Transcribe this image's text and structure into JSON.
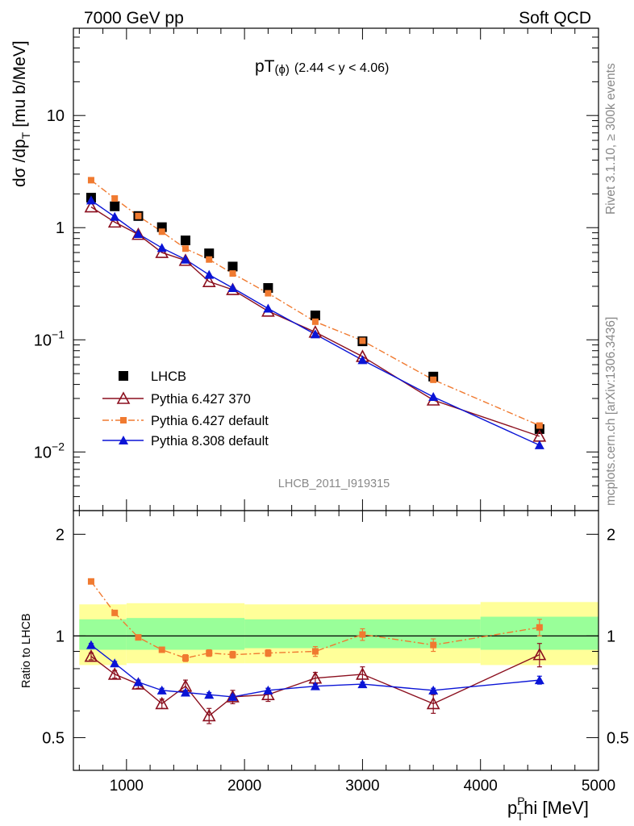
{
  "header": {
    "left": "7000 GeV pp",
    "right": "Soft QCD"
  },
  "side": {
    "rivet": "Rivet 3.1.10, ≥ 300k events",
    "mcplots": "mcplots.cern.ch [arXiv:1306.3436]"
  },
  "plot": {
    "title_main": "pT",
    "title_sub": "(ϕ)",
    "title_range": "(2.44 < y < 4.06)",
    "ylabel": "dσ /dp",
    "ylabel_sub": "T",
    "ylabel_unit": "[mu b/MeV]",
    "ratio_ylabel": "Ratio to LHCB",
    "xlabel_main": "p",
    "xlabel_sub": "T",
    "xlabel_sup": "P",
    "xlabel_tail": "hi [MeV]",
    "analysis_id": "LHCB_2011_I919315"
  },
  "colors": {
    "lhcb": "#000000",
    "py6_370": "#8b0f1e",
    "py6_default": "#f07a30",
    "py8": "#0a14d6",
    "band_outer": "#ffff99",
    "band_inner": "#99ff99"
  },
  "chart_data": {
    "type": "scatter",
    "x": [
      700,
      900,
      1100,
      1300,
      1500,
      1700,
      1900,
      2200,
      2600,
      3000,
      3600,
      4500
    ],
    "xlim": [
      550,
      5000
    ],
    "x_ticks": [
      1000,
      2000,
      3000,
      4000,
      5000
    ],
    "main": {
      "yscale": "log",
      "ylim": [
        0.003,
        60
      ],
      "y_ticks": [
        {
          "value": 0.01,
          "base": "10",
          "exp": "−2"
        },
        {
          "value": 0.1,
          "base": "10",
          "exp": "−1"
        },
        {
          "value": 1,
          "base": "1",
          "exp": ""
        },
        {
          "value": 10,
          "base": "10",
          "exp": ""
        }
      ]
    },
    "ratio": {
      "yscale": "log",
      "ylim": [
        0.4,
        2.35
      ],
      "y_ticks": [
        {
          "value": 0.5,
          "label": "0.5"
        },
        {
          "value": 1,
          "label": "1"
        },
        {
          "value": 2,
          "label": "2"
        }
      ],
      "band_inner": [
        {
          "x0": 600,
          "x1": 1000,
          "lo": 0.91,
          "hi": 1.12
        },
        {
          "x0": 1000,
          "x1": 2000,
          "lo": 0.91,
          "hi": 1.13
        },
        {
          "x0": 2000,
          "x1": 4000,
          "lo": 0.92,
          "hi": 1.12
        },
        {
          "x0": 4000,
          "x1": 5000,
          "lo": 0.91,
          "hi": 1.14
        }
      ],
      "band_outer": [
        {
          "x0": 600,
          "x1": 1000,
          "lo": 0.82,
          "hi": 1.24
        },
        {
          "x0": 1000,
          "x1": 2000,
          "lo": 0.83,
          "hi": 1.25
        },
        {
          "x0": 2000,
          "x1": 4000,
          "lo": 0.83,
          "hi": 1.24
        },
        {
          "x0": 4000,
          "x1": 5000,
          "lo": 0.82,
          "hi": 1.26
        }
      ]
    },
    "series": [
      {
        "name": "LHCB",
        "key": "lhcb",
        "marker": "square-filled",
        "line": "none",
        "values": [
          1.85,
          1.55,
          1.27,
          1.01,
          0.77,
          0.59,
          0.45,
          0.29,
          0.165,
          0.097,
          0.047,
          0.016
        ]
      },
      {
        "name": "Pythia 6.427 370",
        "key": "py6_370",
        "marker": "triangle-open",
        "line": "solid",
        "values": [
          1.53,
          1.12,
          0.87,
          0.6,
          0.51,
          0.33,
          0.28,
          0.18,
          0.117,
          0.071,
          0.029,
          0.0138
        ],
        "ratio": [
          0.87,
          0.77,
          0.72,
          0.63,
          0.71,
          0.58,
          0.66,
          0.67,
          0.75,
          0.77,
          0.63,
          0.88
        ],
        "ratio_err": [
          0.02,
          0.02,
          0.02,
          0.02,
          0.03,
          0.03,
          0.03,
          0.03,
          0.03,
          0.04,
          0.04,
          0.07
        ]
      },
      {
        "name": "Pythia 6.427 default",
        "key": "py6_default",
        "marker": "square-small",
        "line": "dashdot",
        "values": [
          2.65,
          1.82,
          1.27,
          0.92,
          0.65,
          0.52,
          0.39,
          0.26,
          0.145,
          0.098,
          0.044,
          0.0172
        ],
        "ratio": [
          1.45,
          1.17,
          0.99,
          0.91,
          0.86,
          0.89,
          0.88,
          0.89,
          0.9,
          1.01,
          0.94,
          1.06
        ],
        "ratio_err": [
          0.01,
          0.01,
          0.01,
          0.01,
          0.02,
          0.02,
          0.02,
          0.02,
          0.03,
          0.04,
          0.04,
          0.06
        ]
      },
      {
        "name": "Pythia 8.308 default",
        "key": "py8",
        "marker": "triangle-filled",
        "line": "solid",
        "values": [
          1.75,
          1.25,
          0.88,
          0.66,
          0.52,
          0.38,
          0.29,
          0.19,
          0.112,
          0.066,
          0.031,
          0.0115
        ],
        "ratio": [
          0.94,
          0.83,
          0.73,
          0.69,
          0.68,
          0.67,
          0.66,
          0.69,
          0.71,
          0.72,
          0.69,
          0.74
        ],
        "ratio_err": [
          0.01,
          0.01,
          0.01,
          0.01,
          0.01,
          0.01,
          0.01,
          0.01,
          0.01,
          0.01,
          0.01,
          0.02
        ]
      }
    ]
  }
}
